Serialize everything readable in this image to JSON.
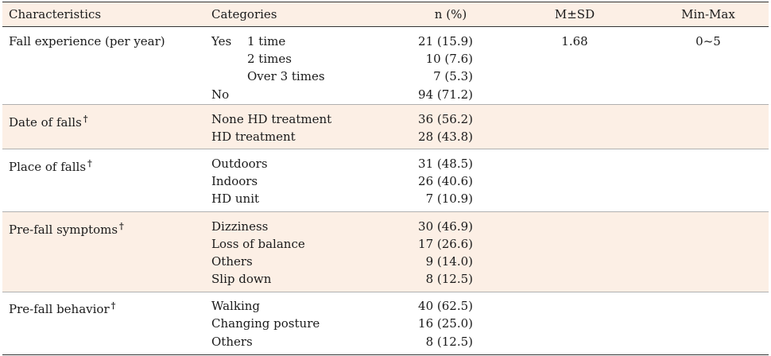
{
  "headers": {
    "characteristics": "Characteristics",
    "categories": "Categories",
    "n": "n (%)",
    "msd": "M±SD",
    "minmax": "Min-Max"
  },
  "groups": {
    "fall_experience": {
      "label": "Fall experience (per year)",
      "yes_label": "Yes",
      "rows": [
        {
          "category": "1 time",
          "n": "21 (15.9)"
        },
        {
          "category": "2 times",
          "n": "10 (7.6)"
        },
        {
          "category": "Over 3 times",
          "n": "7 (5.3)"
        },
        {
          "category": "No",
          "n": "94 (71.2)"
        }
      ],
      "msd": "1.68",
      "minmax": "0~5"
    },
    "date_of_falls": {
      "label": "Date of falls",
      "mark": "†",
      "rows": [
        {
          "category": "None HD treatment",
          "n": "36 (56.2)"
        },
        {
          "category": "HD treatment",
          "n": "28 (43.8)"
        }
      ]
    },
    "place_of_falls": {
      "label": "Place of falls",
      "mark": "†",
      "rows": [
        {
          "category": "Outdoors",
          "n": "31 (48.5)"
        },
        {
          "category": "Indoors",
          "n": "26 (40.6)"
        },
        {
          "category": "HD unit",
          "n": "7 (10.9)"
        }
      ]
    },
    "pre_fall_symptoms": {
      "label": "Pre-fall symptoms",
      "mark": "†",
      "rows": [
        {
          "category": "Dizziness",
          "n": "30 (46.9)"
        },
        {
          "category": "Loss of balance",
          "n": "17 (26.6)"
        },
        {
          "category": "Others",
          "n": "9 (14.0)"
        },
        {
          "category": "Slip down",
          "n": "8 (12.5)"
        }
      ]
    },
    "pre_fall_behavior": {
      "label": "Pre-fall behavior",
      "mark": "†",
      "rows": [
        {
          "category": "Walking",
          "n": "40 (62.5)"
        },
        {
          "category": "Changing posture",
          "n": "16 (25.0)"
        },
        {
          "category": "Others",
          "n": "8 (12.5)"
        }
      ]
    }
  },
  "colors": {
    "shaded_row": "#fcefe5",
    "rule": "#333333"
  }
}
